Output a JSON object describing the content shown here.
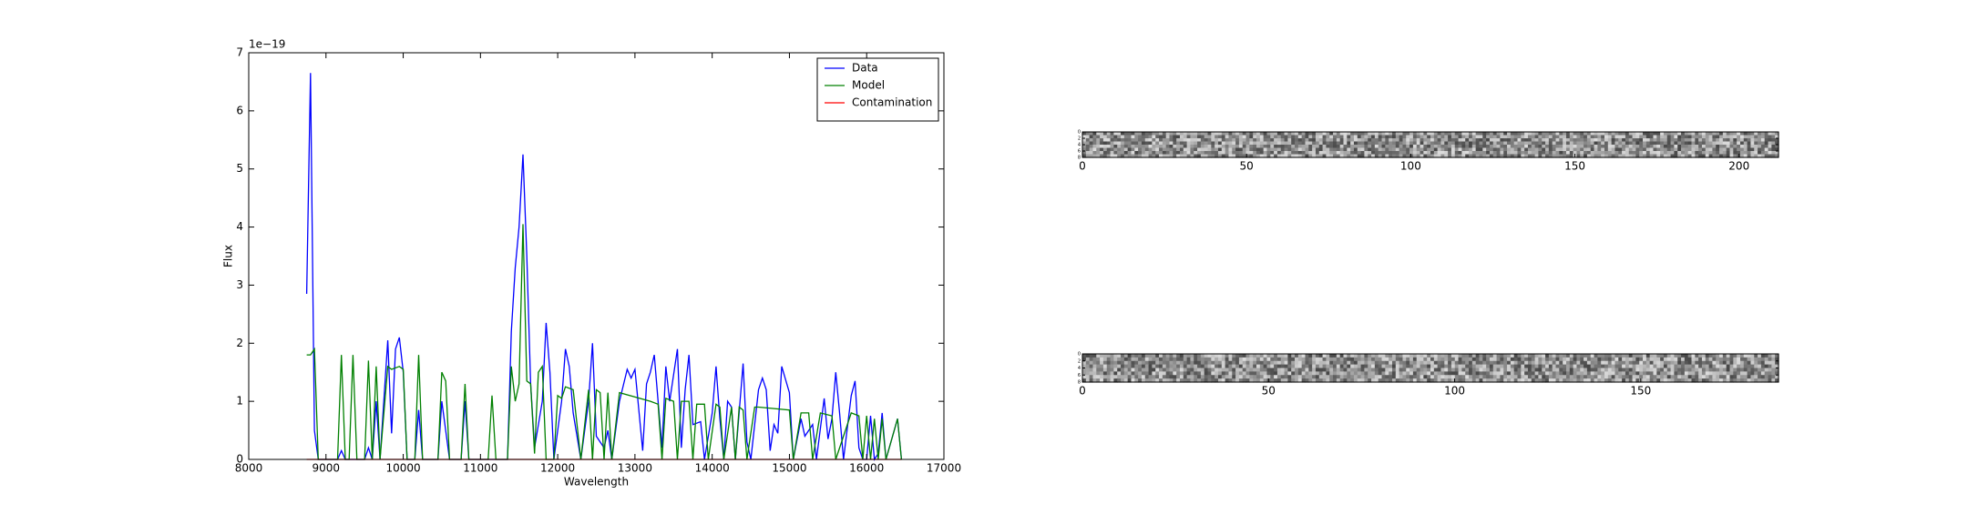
{
  "chart_data": [
    {
      "type": "line",
      "xlabel": "Wavelength",
      "ylabel": "Flux",
      "offset_label": "1e−19",
      "xlim": [
        8000,
        17000
      ],
      "xticks": [
        8000,
        9000,
        10000,
        11000,
        12000,
        13000,
        14000,
        15000,
        16000,
        17000
      ],
      "ylim": [
        0,
        7
      ],
      "yticks": [
        0,
        1,
        2,
        3,
        4,
        5,
        6,
        7
      ],
      "legend": "upper right",
      "series": [
        {
          "name": "Data",
          "color": "#0000ff",
          "x": [
            8750,
            8800,
            8850,
            8900,
            9150,
            9200,
            9250,
            9500,
            9550,
            9600,
            9650,
            9700,
            9800,
            9850,
            9900,
            9950,
            10000,
            10050,
            10150,
            10200,
            10250,
            10450,
            10500,
            10600,
            10750,
            10800,
            10850,
            11350,
            11400,
            11450,
            11500,
            11550,
            11600,
            11650,
            11700,
            11800,
            11850,
            11900,
            11950,
            12050,
            12100,
            12150,
            12200,
            12300,
            12400,
            12450,
            12500,
            12600,
            12650,
            12700,
            12800,
            12900,
            12950,
            13000,
            13100,
            13150,
            13200,
            13250,
            13300,
            13350,
            13400,
            13450,
            13550,
            13600,
            13650,
            13700,
            13750,
            13850,
            13900,
            14000,
            14050,
            14100,
            14150,
            14200,
            14250,
            14300,
            14400,
            14450,
            14500,
            14600,
            14650,
            14700,
            14750,
            14800,
            14850,
            14900,
            15000,
            15050,
            15150,
            15200,
            15300,
            15350,
            15450,
            15500,
            15550,
            15600,
            15650,
            15700,
            15800,
            15850,
            15900,
            15950,
            16000,
            16050,
            16100,
            16150,
            16200,
            16250,
            16400,
            16450
          ],
          "values": [
            2.85,
            6.65,
            0.5,
            0,
            0,
            0.15,
            0,
            0,
            0.2,
            0,
            1.0,
            0,
            2.05,
            0.45,
            1.9,
            2.1,
            1.5,
            0,
            0,
            0.85,
            0,
            0,
            1.0,
            0,
            0,
            1.0,
            0,
            0,
            2.2,
            3.3,
            4.0,
            5.25,
            3.5,
            1.3,
            0.2,
            1.0,
            2.35,
            1.5,
            0,
            1.0,
            1.9,
            1.6,
            0.8,
            0,
            1.0,
            2.0,
            0.4,
            0.2,
            0.5,
            0,
            1.0,
            1.55,
            1.4,
            1.55,
            0.15,
            1.3,
            1.5,
            1.8,
            1.0,
            0.2,
            1.6,
            1.0,
            1.9,
            0.2,
            1.2,
            1.8,
            0.6,
            0.65,
            0,
            0.8,
            1.6,
            0.7,
            0,
            1.0,
            0.9,
            0,
            1.65,
            0.3,
            0,
            1.2,
            1.4,
            1.2,
            0.15,
            0.6,
            0.45,
            1.6,
            1.15,
            0,
            0.7,
            0.4,
            0.6,
            0,
            1.05,
            0.35,
            0.7,
            1.5,
            0.8,
            0,
            1.1,
            1.35,
            0.2,
            0,
            0,
            0.75,
            0,
            0.1,
            0.8,
            0,
            0.7,
            0
          ]
        },
        {
          "name": "Model",
          "color": "#008000",
          "x": [
            8750,
            8800,
            8850,
            8900,
            9150,
            9200,
            9250,
            9300,
            9350,
            9400,
            9500,
            9550,
            9600,
            9650,
            9700,
            9800,
            9850,
            9950,
            10000,
            10050,
            10150,
            10200,
            10250,
            10450,
            10500,
            10550,
            10600,
            10750,
            10800,
            10850,
            11100,
            11150,
            11200,
            11350,
            11400,
            11450,
            11500,
            11550,
            11600,
            11650,
            11700,
            11750,
            11800,
            11850,
            11950,
            12000,
            12050,
            12100,
            12200,
            12300,
            12400,
            12450,
            12500,
            12550,
            12600,
            12650,
            12700,
            12800,
            13200,
            13300,
            13350,
            13400,
            13500,
            13550,
            13600,
            13700,
            13750,
            13800,
            13900,
            13950,
            14050,
            14100,
            14150,
            14250,
            14300,
            14350,
            14400,
            14450,
            14550,
            14600,
            15000,
            15050,
            15150,
            15250,
            15300,
            15400,
            15550,
            15600,
            15800,
            15900,
            15950,
            16000,
            16050,
            16100,
            16150,
            16200,
            16250,
            16400,
            16450
          ],
          "values": [
            1.8,
            1.8,
            1.9,
            0,
            0,
            1.8,
            0,
            0,
            1.8,
            0,
            0,
            1.7,
            0,
            1.6,
            0,
            1.6,
            1.55,
            1.6,
            1.55,
            0,
            0,
            1.8,
            0,
            0,
            1.5,
            1.35,
            0,
            0,
            1.3,
            0,
            0,
            1.1,
            0,
            0,
            1.6,
            1.0,
            1.3,
            4.05,
            1.35,
            1.3,
            0.1,
            1.5,
            1.6,
            0,
            0,
            1.1,
            1.05,
            1.25,
            1.2,
            0,
            1.2,
            0,
            1.2,
            1.15,
            0,
            1.15,
            0,
            1.15,
            1.0,
            0.95,
            0,
            1.05,
            1.0,
            0,
            1.0,
            1.0,
            0,
            0.95,
            0.95,
            0,
            0.95,
            0.9,
            0,
            0.9,
            0,
            0.9,
            0.85,
            0,
            0.9,
            0.9,
            0.85,
            0,
            0.8,
            0.8,
            0,
            0.8,
            0.75,
            0,
            0.8,
            0.75,
            0,
            0.75,
            0,
            0.7,
            0,
            0.7,
            0,
            0.7,
            0
          ]
        },
        {
          "name": "Contamination",
          "color": "#ff0000",
          "x": [
            8750,
            16450
          ],
          "values": [
            0,
            0
          ]
        }
      ]
    },
    {
      "type": "image",
      "xlim": [
        0,
        212
      ],
      "xticks": [
        0,
        50,
        100,
        150,
        200
      ],
      "ylim": [
        8,
        0
      ],
      "yticks": [
        0,
        2,
        4,
        6,
        8
      ]
    },
    {
      "type": "image",
      "xlim": [
        0,
        187
      ],
      "xticks": [
        0,
        50,
        100,
        150
      ],
      "ylim": [
        8,
        0
      ],
      "yticks": [
        0,
        2,
        4,
        6,
        8
      ]
    }
  ]
}
